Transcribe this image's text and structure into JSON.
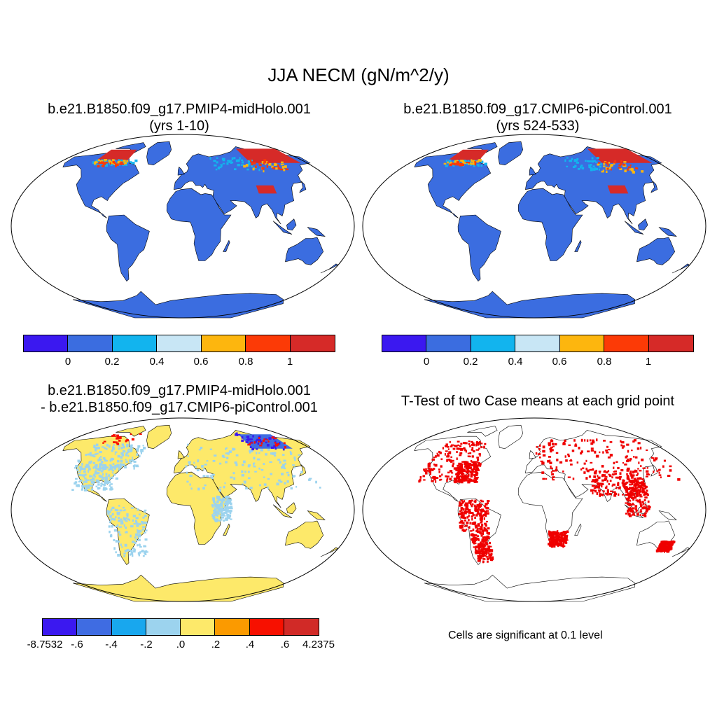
{
  "title": "JJA NECM (gN/m^2/y)",
  "panels": [
    {
      "title_line1": "b.e21.B1850.f09_g17.PMIP4-midHolo.001",
      "title_line2": "(yrs 1-10)"
    },
    {
      "title_line1": "b.e21.B1850.f09_g17.CMIP6-piControl.001",
      "title_line2": "(yrs 524-533)"
    },
    {
      "title_line1": "b.e21.B1850.f09_g17.PMIP4-midHolo.001",
      "title_line2": "- b.e21.B1850.f09_g17.CMIP6-piControl.001"
    },
    {
      "title_line1": "T-Test of two Case means at each grid point",
      "title_line2": ""
    }
  ],
  "colorbar_abs": {
    "colors": [
      "#3b18f0",
      "#3b6de0",
      "#12b4ee",
      "#c8e6f5",
      "#fdb60e",
      "#fc3a06",
      "#d62a28"
    ],
    "labels": [
      "0",
      "0.2",
      "0.4",
      "0.6",
      "0.8",
      "1"
    ]
  },
  "colorbar_diff": {
    "colors": [
      "#3b18f0",
      "#3f6ce2",
      "#18a7ee",
      "#9cd3ee",
      "#fde96a",
      "#fb9a00",
      "#f71000",
      "#d12a27"
    ],
    "labels": [
      "-8.7532",
      "-.6",
      "-.4",
      "-.2",
      ".0",
      ".2",
      ".4",
      ".6",
      "4.2375"
    ]
  },
  "significance_note": "Cells are significant at 0.1 level",
  "colors": {
    "ttest_red": "#ef0000",
    "ocean": "#ffffff",
    "coast": "#000000"
  }
}
